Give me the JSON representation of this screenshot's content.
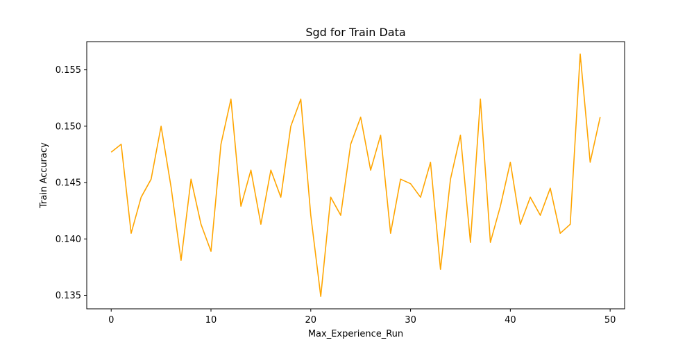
{
  "chart_data": {
    "type": "line",
    "title": "Sgd for Train Data",
    "xlabel": "Max_Experience_Run",
    "ylabel": "Train Accuracy",
    "xlim": [
      -2.45,
      51.45
    ],
    "ylim": [
      0.1338,
      0.1575
    ],
    "xticks": [
      0,
      10,
      20,
      30,
      40,
      50
    ],
    "yticks": [
      0.135,
      0.14,
      0.145,
      0.15,
      0.155
    ],
    "ytick_labels": [
      "0.135",
      "0.140",
      "0.145",
      "0.150",
      "0.155"
    ],
    "grid": false,
    "line_color": "#ffa500",
    "series": [
      {
        "x": [
          0,
          1,
          2,
          3,
          4,
          5,
          6,
          7,
          8,
          9,
          10,
          11,
          12,
          13,
          14,
          15,
          16,
          17,
          18,
          19,
          20,
          21,
          22,
          23,
          24,
          25,
          26,
          27,
          28,
          29,
          30,
          31,
          32,
          33,
          34,
          35,
          36,
          37,
          38,
          39,
          40,
          41,
          42,
          43,
          44,
          45,
          46,
          47,
          48,
          49
        ],
        "values": [
          0.1477,
          0.1484,
          0.1405,
          0.1437,
          0.1453,
          0.15,
          0.1446,
          0.1381,
          0.1453,
          0.1413,
          0.1389,
          0.1484,
          0.1524,
          0.1429,
          0.1461,
          0.1413,
          0.1461,
          0.1437,
          0.15,
          0.1524,
          0.1421,
          0.1349,
          0.1437,
          0.1421,
          0.1484,
          0.1508,
          0.1461,
          0.1492,
          0.1405,
          0.1453,
          0.1449,
          0.1437,
          0.1468,
          0.1373,
          0.1453,
          0.1492,
          0.1397,
          0.1524,
          0.1397,
          0.1429,
          0.1468,
          0.1413,
          0.1437,
          0.1421,
          0.1445,
          0.1405,
          0.1413,
          0.1564,
          0.1468,
          0.1508
        ]
      }
    ]
  }
}
